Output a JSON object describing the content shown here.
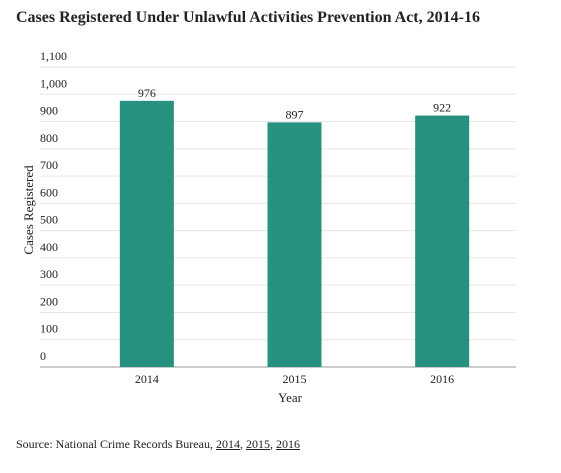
{
  "chart_data": {
    "type": "bar",
    "title": "Cases Registered Under Unlawful Activities Prevention Act, 2014-16",
    "categories": [
      "2014",
      "2015",
      "2016"
    ],
    "values": [
      976,
      897,
      922
    ],
    "color": "#26917e",
    "x_label": "Year",
    "y_label": "Cases Registered",
    "ylim": [
      0,
      1100
    ],
    "yticks": [
      0,
      100,
      200,
      300,
      400,
      500,
      600,
      700,
      800,
      900,
      {
        "value": 1000,
        "label": "1,000"
      },
      {
        "value": 1100,
        "label": "1,100"
      }
    ],
    "grid": true,
    "show_value_labels": true
  },
  "source": {
    "prefix": "Source: National Crime Records Bureau,",
    "links": [
      "2014",
      "2015",
      "2016"
    ],
    "separator": ","
  }
}
